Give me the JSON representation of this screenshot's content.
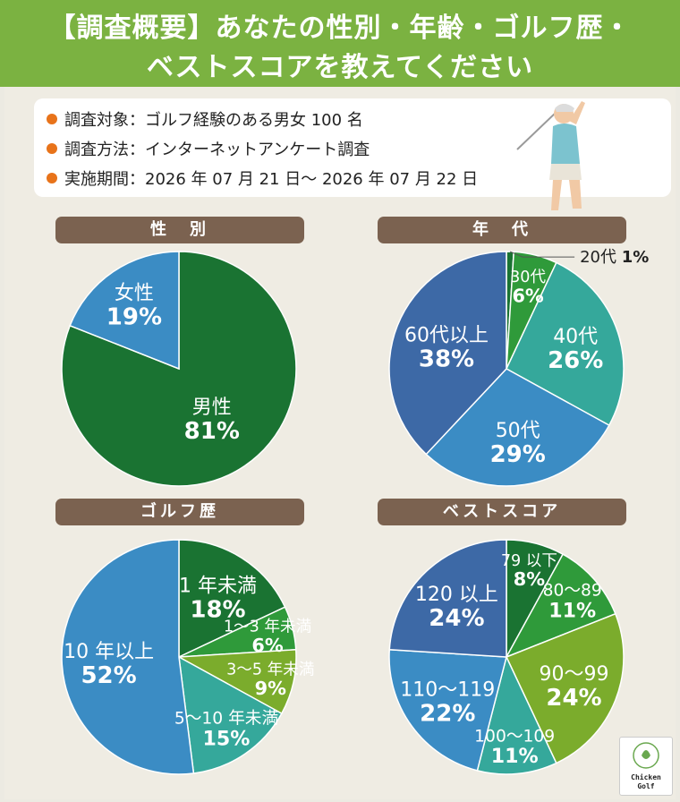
{
  "title": {
    "line1": "【調査概要】あなたの性別・年齢・ゴルフ歴・",
    "line2": "ベストスコアを教えてください"
  },
  "survey": {
    "target": "調査対象：ゴルフ経験のある男女 100 名",
    "method": "調査方法：インターネットアンケート調査",
    "period": "実施期間：2026 年 07 月 21 日～ 2026 年 07 月 22 日"
  },
  "logo": {
    "line1": "Chicken",
    "line2": "Golf"
  },
  "colors": {
    "dark_green": "#1a7332",
    "green": "#2f9a3a",
    "yellow_green": "#7bac2c",
    "teal": "#35a89b",
    "blue": "#3b8cc4",
    "navy": "#3d69a6",
    "label_bg": "#7b6250",
    "banner": "#7bb241",
    "accent_dot": "#e8731a"
  },
  "chart_data": [
    {
      "type": "pie",
      "title": "性　別",
      "unit": "%",
      "slices": [
        {
          "label": "男性",
          "value": 81,
          "color": "#1a7332"
        },
        {
          "label": "女性",
          "value": 19,
          "color": "#3b8cc4"
        }
      ]
    },
    {
      "type": "pie",
      "title": "年　代",
      "unit": "%",
      "slices": [
        {
          "label": "20代",
          "value": 1,
          "color": "#1a7332"
        },
        {
          "label": "30代",
          "value": 6,
          "color": "#2f9a3a"
        },
        {
          "label": "40代",
          "value": 26,
          "color": "#35a89b"
        },
        {
          "label": "50代",
          "value": 29,
          "color": "#3b8cc4"
        },
        {
          "label": "60代以上",
          "value": 38,
          "color": "#3d69a6"
        }
      ]
    },
    {
      "type": "pie",
      "title": "ゴルフ歴",
      "unit": "%",
      "slices": [
        {
          "label": "1 年未満",
          "value": 18,
          "color": "#1a7332"
        },
        {
          "label": "1～3 年未満",
          "value": 6,
          "color": "#2f9a3a"
        },
        {
          "label": "3～5 年未満",
          "value": 9,
          "color": "#7bac2c"
        },
        {
          "label": "5～10 年未満",
          "value": 15,
          "color": "#35a89b"
        },
        {
          "label": "10 年以上",
          "value": 52,
          "color": "#3b8cc4"
        }
      ]
    },
    {
      "type": "pie",
      "title": "ベストスコア",
      "unit": "%",
      "slices": [
        {
          "label": "79 以下",
          "value": 8,
          "color": "#1a7332"
        },
        {
          "label": "80～89",
          "value": 11,
          "color": "#2f9a3a"
        },
        {
          "label": "90～99",
          "value": 24,
          "color": "#7bac2c"
        },
        {
          "label": "100～109",
          "value": 11,
          "color": "#35a89b"
        },
        {
          "label": "110～119",
          "value": 22,
          "color": "#3b8cc4"
        },
        {
          "label": "120 以上",
          "value": 24,
          "color": "#3d69a6"
        }
      ]
    }
  ]
}
